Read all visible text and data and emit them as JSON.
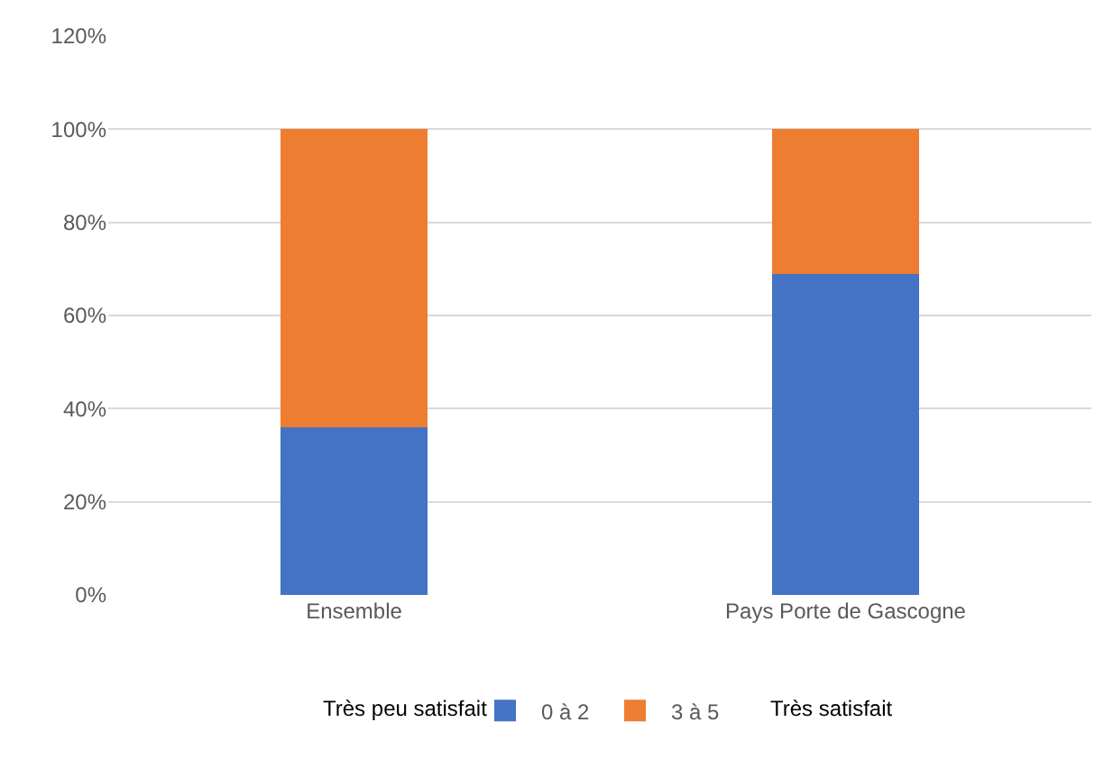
{
  "chart_data": {
    "type": "bar",
    "stacked": true,
    "categories": [
      "Ensemble",
      "Pays Porte de Gascogne"
    ],
    "series": [
      {
        "name": "0 à 2",
        "color": "#4472c4",
        "values": [
          36,
          69
        ]
      },
      {
        "name": "3 à 5",
        "color": "#ed7d31",
        "values": [
          64,
          31
        ]
      }
    ],
    "ylim": [
      0,
      120
    ],
    "yticks": [
      {
        "value": 0,
        "label": "0%"
      },
      {
        "value": 20,
        "label": "20%"
      },
      {
        "value": 40,
        "label": "40%"
      },
      {
        "value": 60,
        "label": "60%"
      },
      {
        "value": 80,
        "label": "80%"
      },
      {
        "value": 100,
        "label": "100%"
      },
      {
        "value": 120,
        "label": "120%"
      }
    ],
    "grid": "y",
    "legend": "bottom",
    "annotations": [
      "Très peu satisfait",
      "Très satisfait"
    ]
  }
}
